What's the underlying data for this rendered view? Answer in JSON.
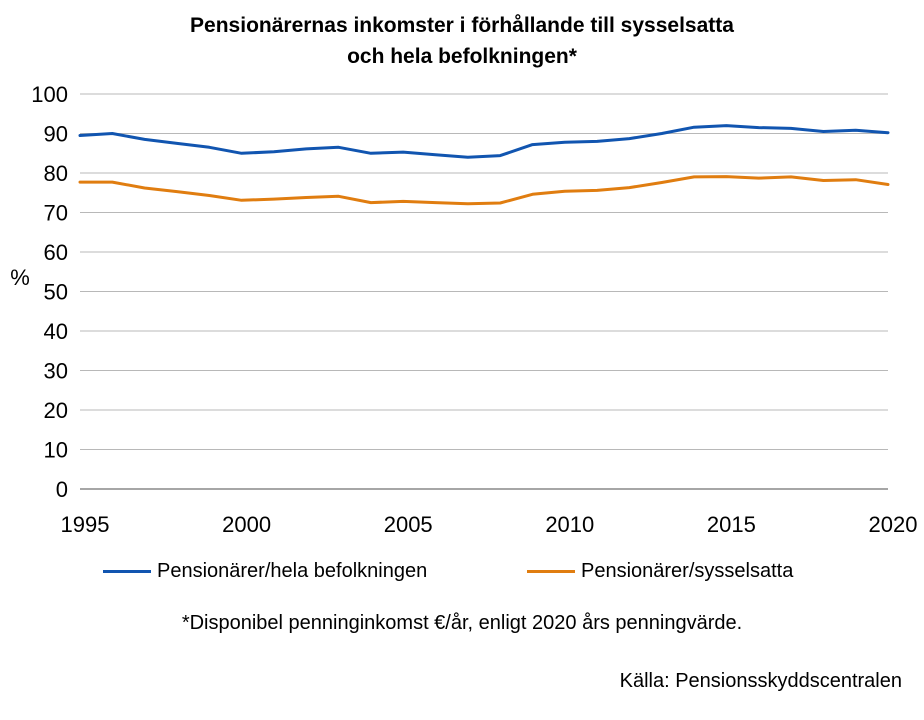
{
  "title_line1": "Pensionärernas inkomster i förhållande till sysselsatta",
  "title_line2": "och hela befolkningen*",
  "footnote": "*Disponibel penninginkomst €/år, enligt 2020 års penningvärde.",
  "source": "Källa: Pensionsskyddscentralen",
  "chart_data": {
    "type": "line",
    "ylabel": "%",
    "xlabel": "",
    "ylim": [
      0,
      100
    ],
    "yticks": [
      0,
      10,
      20,
      30,
      40,
      50,
      60,
      70,
      80,
      90,
      100
    ],
    "xlim": [
      1995,
      2020
    ],
    "xticks": [
      1995,
      2000,
      2005,
      2010,
      2015,
      2020
    ],
    "grid": "horizontal",
    "legend_position": "bottom",
    "x": [
      1995,
      1996,
      1997,
      1998,
      1999,
      2000,
      2001,
      2002,
      2003,
      2004,
      2005,
      2006,
      2007,
      2008,
      2009,
      2010,
      2011,
      2012,
      2013,
      2014,
      2015,
      2016,
      2017,
      2018,
      2019,
      2020
    ],
    "series": [
      {
        "name": "Pensionärer/hela befolkningen",
        "color": "#1155b0",
        "values": [
          89.5,
          90.0,
          88.5,
          87.5,
          86.5,
          85.0,
          85.4,
          86.1,
          86.5,
          85.0,
          85.3,
          84.6,
          84.0,
          84.4,
          87.2,
          87.8,
          88.0,
          88.7,
          90.0,
          91.6,
          92.0,
          91.5,
          91.3,
          90.5,
          90.8,
          90.2
        ]
      },
      {
        "name": "Pensionärer/sysselsatta",
        "color": "#e07d10",
        "values": [
          77.7,
          77.7,
          76.2,
          75.3,
          74.3,
          73.1,
          73.4,
          73.8,
          74.1,
          72.5,
          72.8,
          72.5,
          72.2,
          72.4,
          74.6,
          75.4,
          75.6,
          76.3,
          77.6,
          79.0,
          79.1,
          78.7,
          79.0,
          78.1,
          78.3,
          77.1
        ]
      }
    ]
  }
}
